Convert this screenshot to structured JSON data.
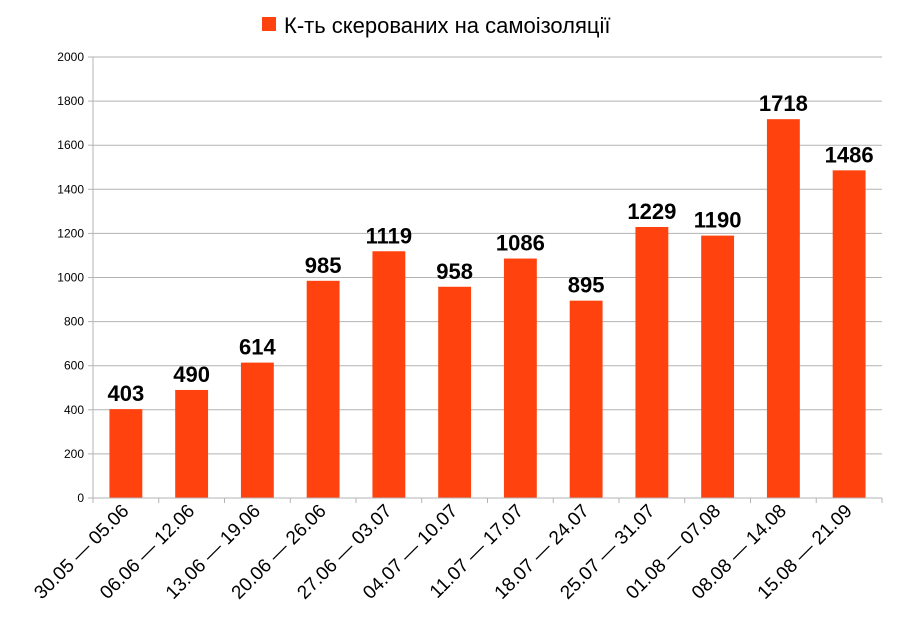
{
  "chart_data": {
    "type": "bar",
    "categories": [
      "30.05 — 05.06",
      "06.06 — 12.06",
      "13.06 — 19.06",
      "20.06 — 26.06",
      "27.06 — 03.07",
      "04.07 — 10.07",
      "11.07 — 17.07",
      "18.07 — 24.07",
      "25.07 — 31.07",
      "01.08 — 07.08",
      "08.08 — 14.08",
      "15.08 — 21.09"
    ],
    "series": [
      {
        "name": "К-ть скерованих на самоізоляції",
        "values": [
          403,
          490,
          614,
          985,
          1119,
          958,
          1086,
          895,
          1229,
          1190,
          1718,
          1486
        ]
      }
    ],
    "ylim": [
      0,
      2000
    ],
    "yticks": [
      0,
      200,
      400,
      600,
      800,
      1000,
      1200,
      1400,
      1600,
      1800,
      2000
    ],
    "grid": true,
    "legend_position": "top-center",
    "bar_color": "#ff420e",
    "grid_color": "#b3b3b3"
  }
}
